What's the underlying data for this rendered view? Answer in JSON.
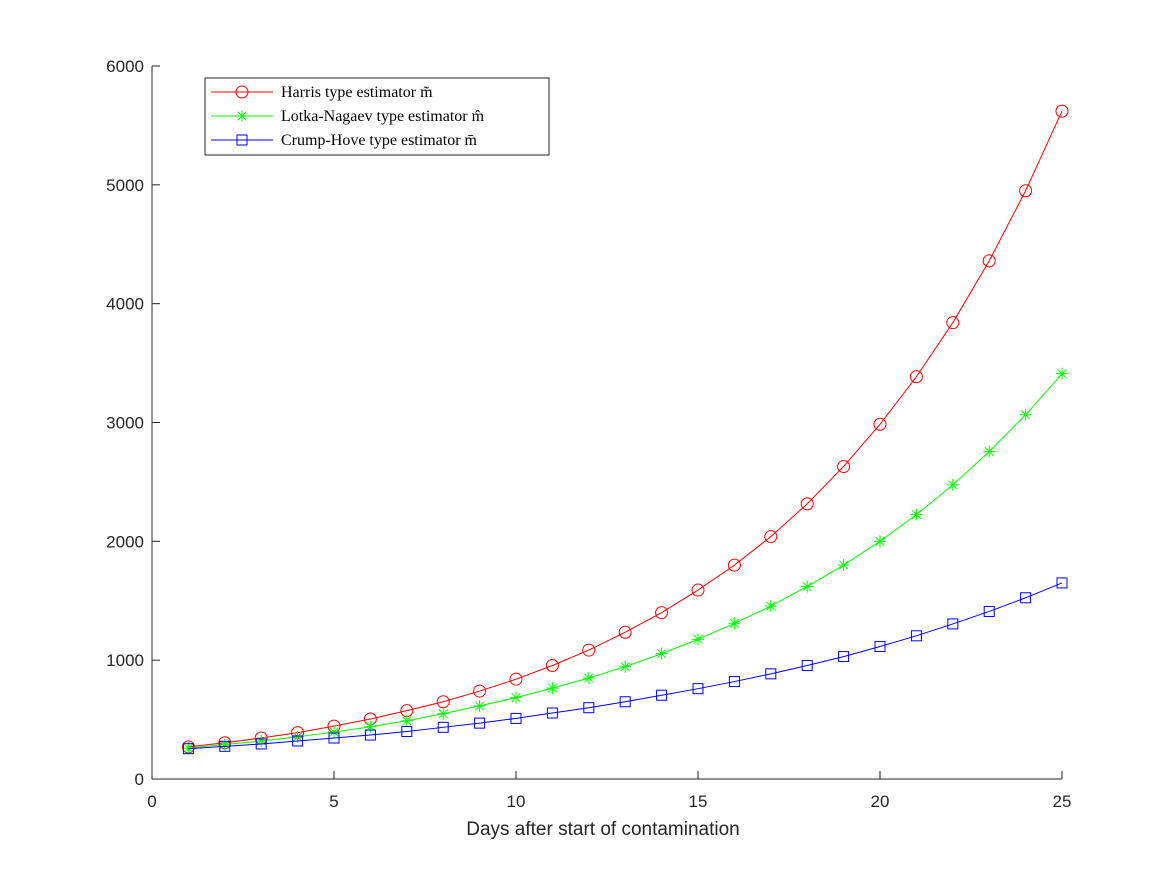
{
  "chart_data": {
    "type": "line",
    "title": "",
    "xlabel": "Days after start of contamination",
    "ylabel": "",
    "xlim": [
      0,
      25
    ],
    "ylim": [
      0,
      6000
    ],
    "xticks": [
      0,
      5,
      10,
      15,
      20,
      25
    ],
    "yticks": [
      0,
      1000,
      2000,
      3000,
      4000,
      5000,
      6000
    ],
    "grid": false,
    "legend_position": "top-left",
    "x": [
      1,
      2,
      3,
      4,
      5,
      6,
      7,
      8,
      9,
      10,
      11,
      12,
      13,
      14,
      15,
      16,
      17,
      18,
      19,
      20,
      21,
      22,
      23,
      24,
      25
    ],
    "series": [
      {
        "name": "Harris type estimator m̃",
        "color": "#ff0000",
        "marker": "circle",
        "values": [
          270,
          305,
          345,
          390,
          445,
          505,
          575,
          650,
          740,
          840,
          955,
          1085,
          1235,
          1400,
          1590,
          1800,
          2040,
          2315,
          2630,
          2985,
          3385,
          3840,
          4360,
          4950,
          5620
        ]
      },
      {
        "name": "Lotka-Nagaev type estimator m̂",
        "color": "#00ff00",
        "marker": "star",
        "values": [
          260,
          290,
          320,
          355,
          395,
          440,
          490,
          550,
          615,
          685,
          765,
          850,
          945,
          1055,
          1175,
          1310,
          1455,
          1620,
          1800,
          2000,
          2225,
          2475,
          2755,
          3065,
          3410
        ]
      },
      {
        "name": "Crump-Hove type estimator m̄",
        "color": "#0000ff",
        "marker": "square",
        "values": [
          255,
          275,
          295,
          320,
          345,
          370,
          400,
          435,
          470,
          510,
          555,
          600,
          650,
          705,
          760,
          820,
          885,
          955,
          1030,
          1115,
          1205,
          1305,
          1410,
          1525,
          1650
        ]
      }
    ]
  }
}
